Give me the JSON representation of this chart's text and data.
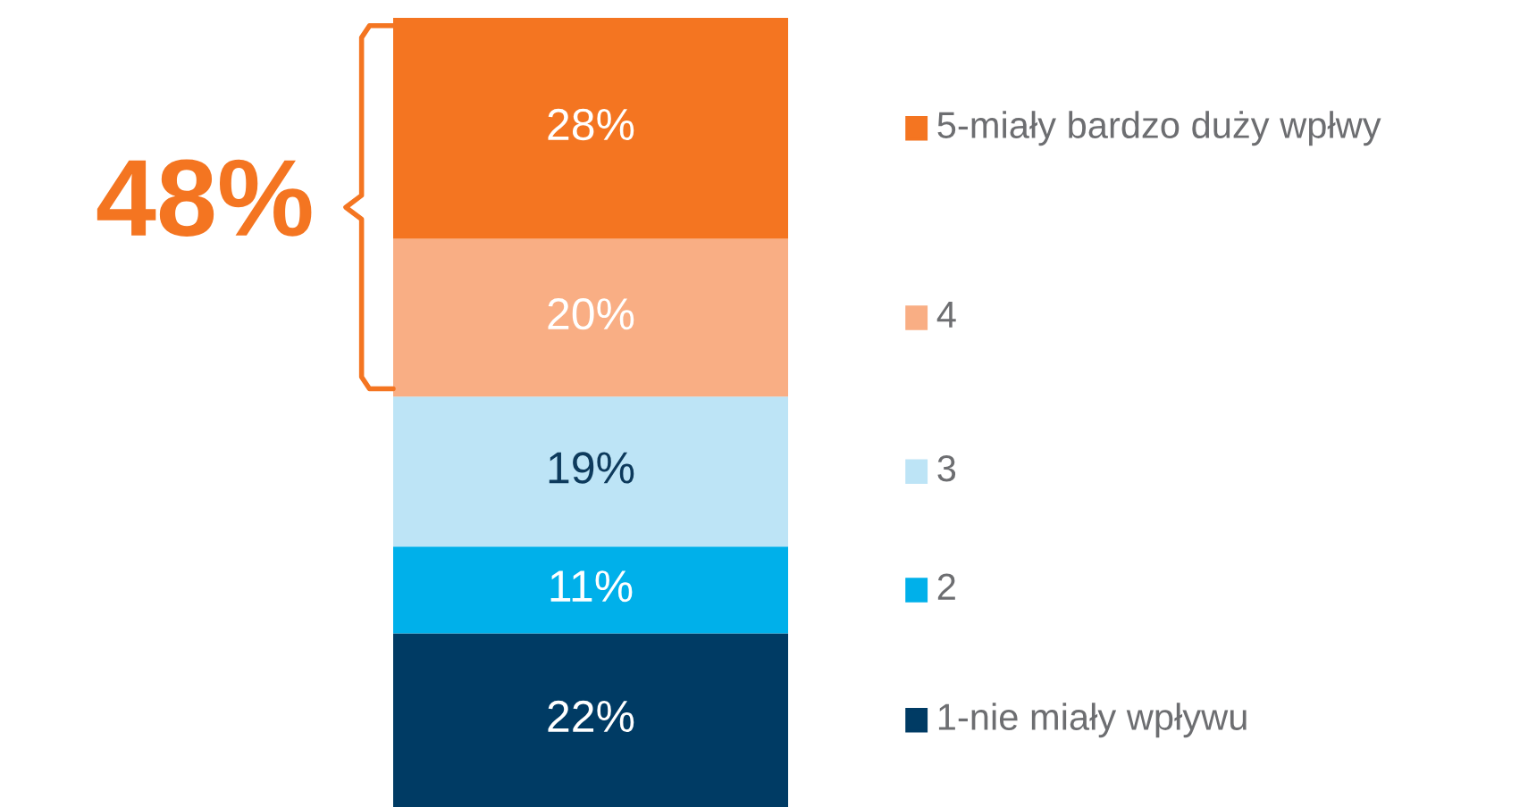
{
  "chart_data": {
    "type": "bar",
    "stacked": true,
    "categories": [
      null
    ],
    "tick_labels": false,
    "grid": false,
    "legend": "right",
    "series": [
      {
        "name": "1-nie miały wpływu",
        "color": "#003b64",
        "values": [
          22
        ],
        "value_labels": [
          "22%"
        ]
      },
      {
        "name": "2",
        "color": "#00b0ea",
        "values": [
          11
        ],
        "value_labels": [
          "11%"
        ]
      },
      {
        "name": "3",
        "color": "#bde4f6",
        "values": [
          19
        ],
        "value_labels": [
          "19%"
        ]
      },
      {
        "name": "4",
        "color": "#f9ae84",
        "values": [
          20
        ],
        "value_labels": [
          "20%"
        ]
      },
      {
        "name": "5-miały bardzo duży wpłwy",
        "color": "#f47521",
        "values": [
          28
        ],
        "value_labels": [
          "28%"
        ]
      }
    ],
    "annotations": [
      "48%"
    ]
  }
}
